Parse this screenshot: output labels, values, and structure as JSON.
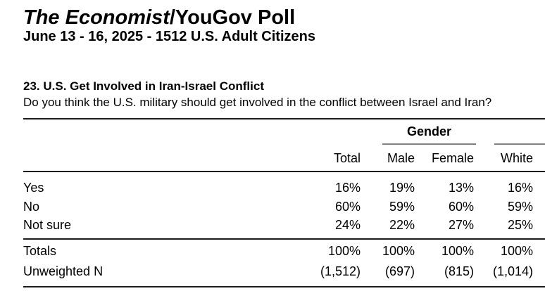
{
  "document": {
    "title_brand": "The Economist",
    "title_rest": "/YouGov Poll",
    "subtitle": "June 13 - 16, 2025 - 1512 U.S. Adult Citizens"
  },
  "question": {
    "heading": "23. U.S. Get Involved in Iran-Israel Conflict",
    "text": "Do you think the U.S. military should get involved in the conflict between Israel and Iran?"
  },
  "table": {
    "group_headers": {
      "gender": "Gender"
    },
    "columns": [
      "Total",
      "Male",
      "Female",
      "White"
    ],
    "rows": [
      {
        "label": "Yes",
        "values": [
          "16%",
          "19%",
          "13%",
          "16%"
        ]
      },
      {
        "label": "No",
        "values": [
          "60%",
          "59%",
          "60%",
          "59%"
        ]
      },
      {
        "label": "Not sure",
        "values": [
          "24%",
          "22%",
          "27%",
          "25%"
        ]
      }
    ],
    "summary_rows": [
      {
        "label": "Totals",
        "values": [
          "100%",
          "100%",
          "100%",
          "100%"
        ]
      },
      {
        "label": "Unweighted N",
        "values": [
          "(1,512)",
          "(697)",
          "(815)",
          "(1,014)"
        ]
      }
    ]
  },
  "colors": {
    "background": "#ffffff",
    "text": "#000000",
    "rule": "#1c1c1c",
    "group_underline": "#808080"
  }
}
